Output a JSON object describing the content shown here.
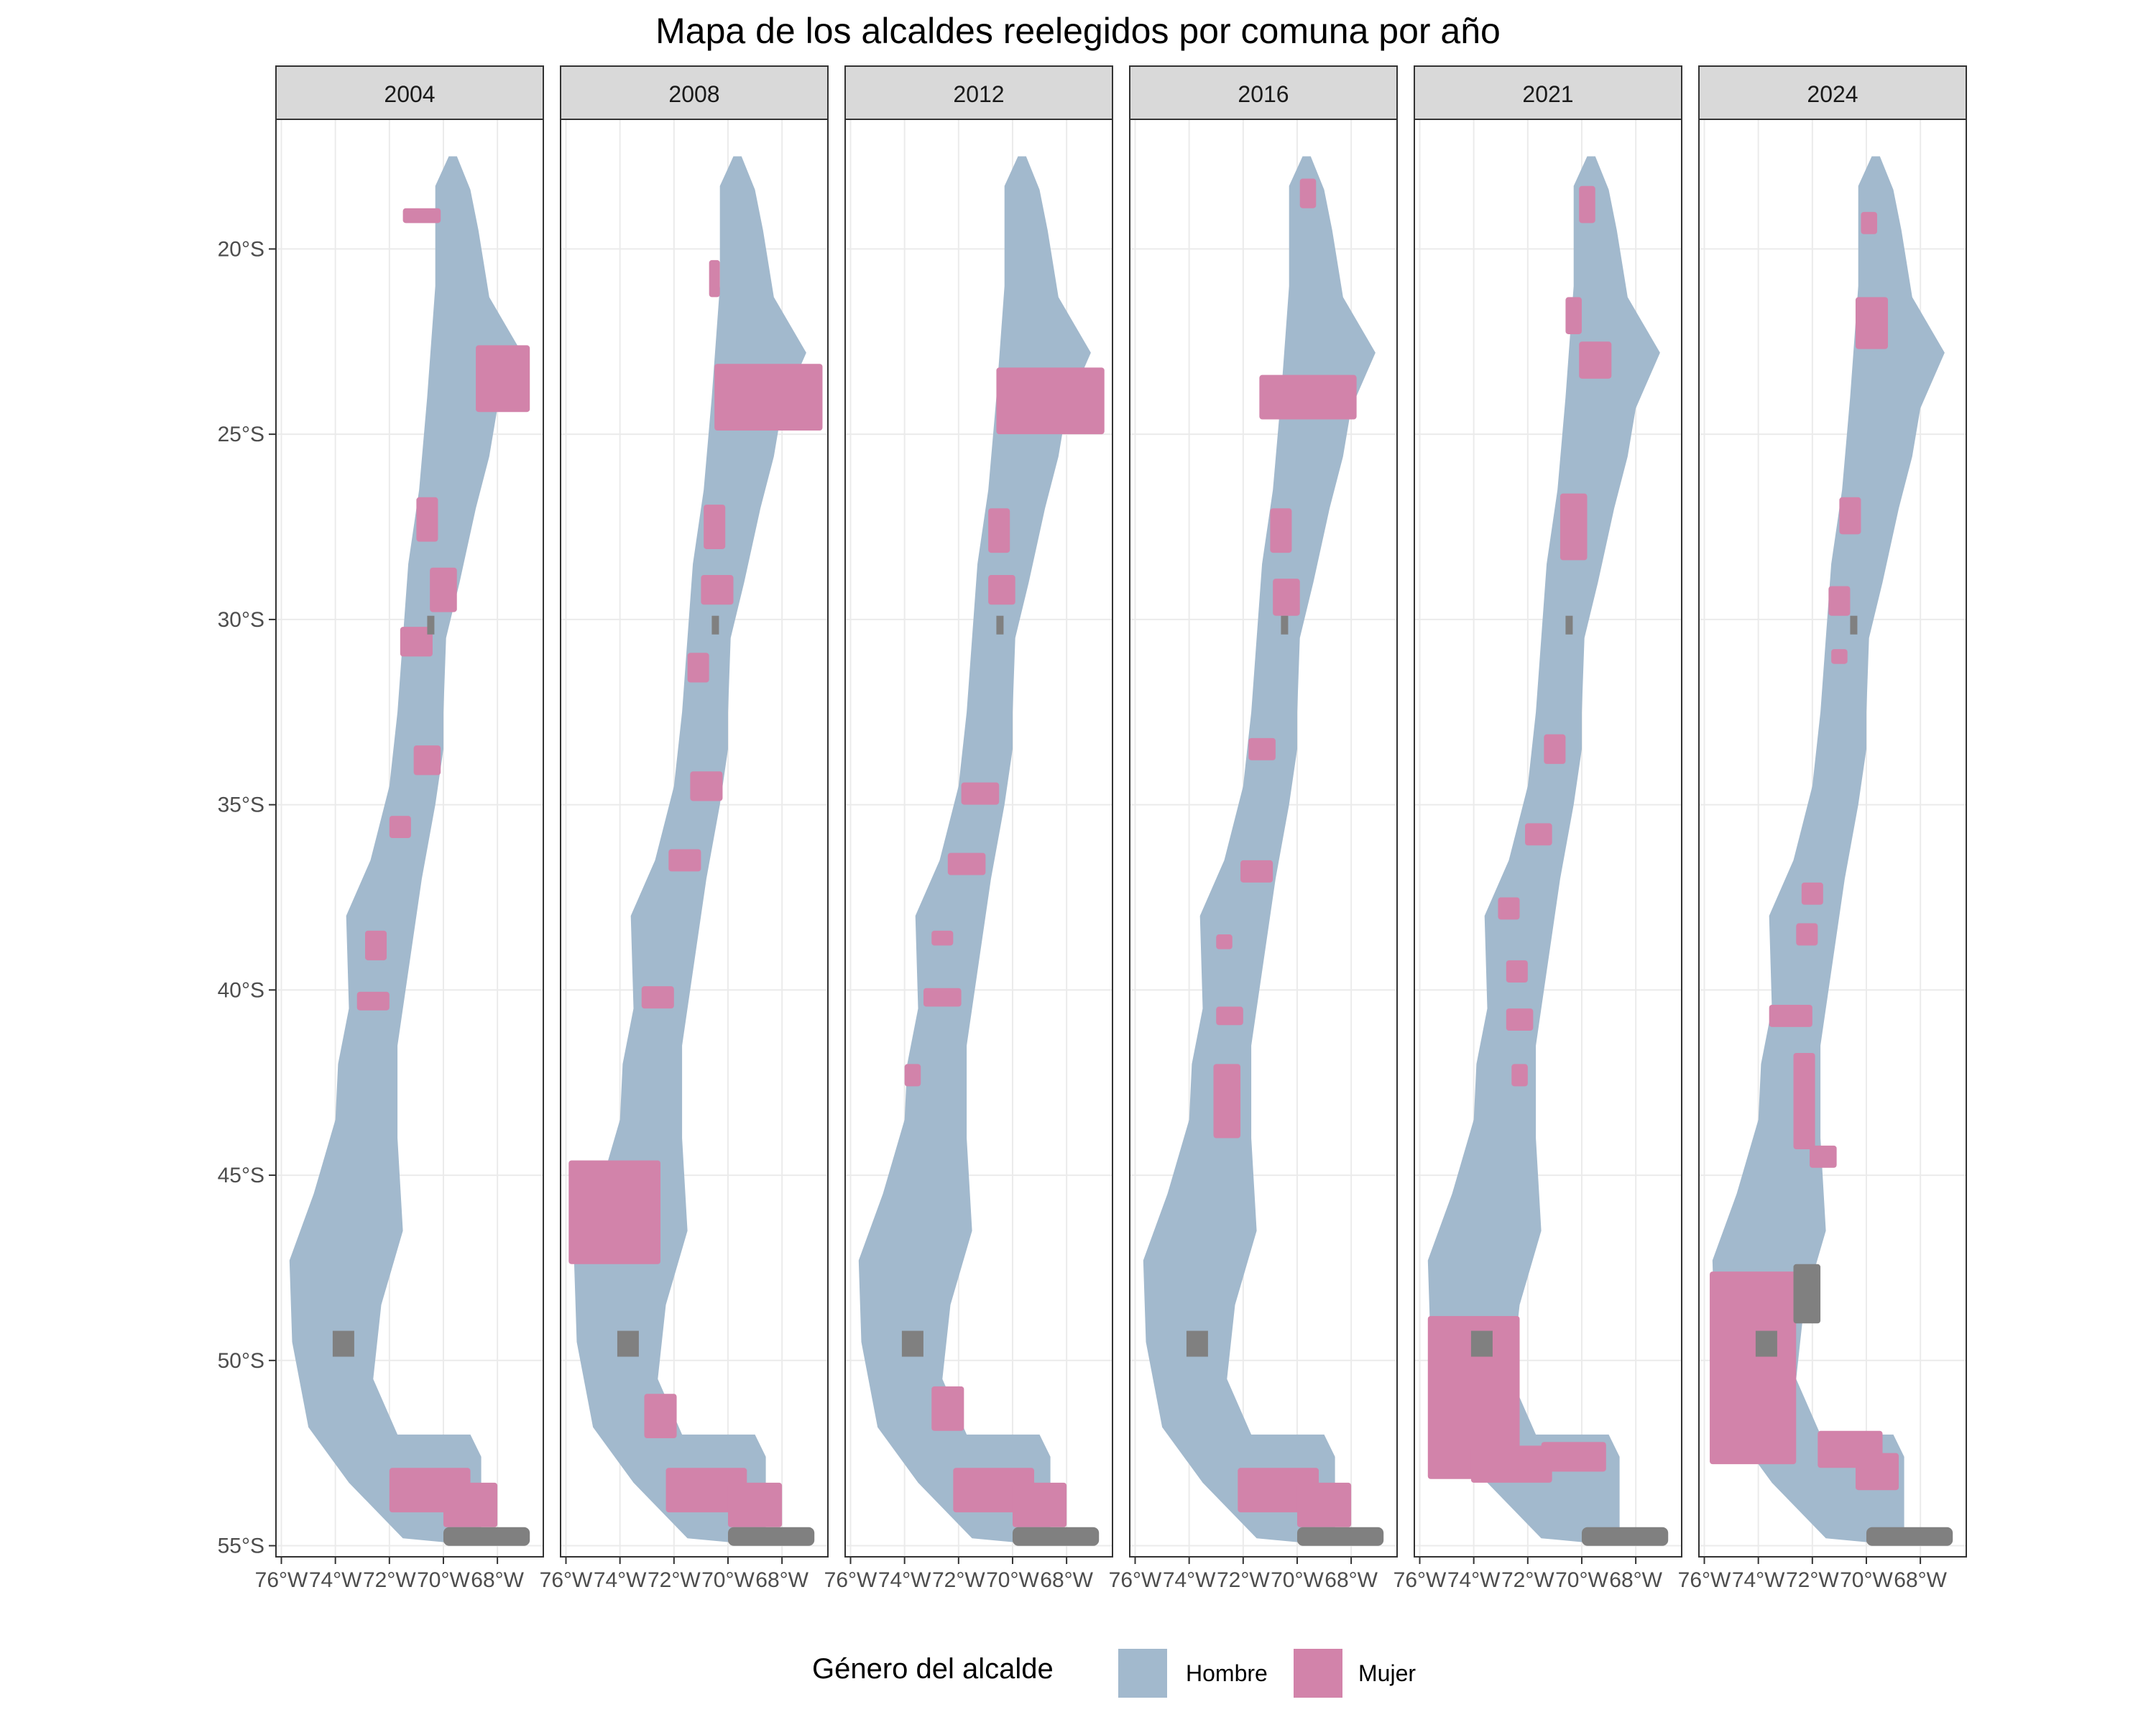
{
  "title": "Mapa de los alcaldes reelegidos por comuna por año",
  "panels": [
    "2004",
    "2008",
    "2012",
    "2016",
    "2021",
    "2024"
  ],
  "y_axis_labels": [
    {
      "lat": -20,
      "label": "20°S"
    },
    {
      "lat": -25,
      "label": "25°S"
    },
    {
      "lat": -30,
      "label": "30°S"
    },
    {
      "lat": -35,
      "label": "35°S"
    },
    {
      "lat": -40,
      "label": "40°S"
    },
    {
      "lat": -45,
      "label": "45°S"
    },
    {
      "lat": -50,
      "label": "50°S"
    },
    {
      "lat": -55,
      "label": "55°S"
    }
  ],
  "x_axis_labels": [
    {
      "lon": -76,
      "label": "76°W"
    },
    {
      "lon": -74,
      "label": "74°W"
    },
    {
      "lon": -72,
      "label": "72°W"
    },
    {
      "lon": -70,
      "label": "70°W"
    },
    {
      "lon": -68,
      "label": "68°W"
    }
  ],
  "legend": {
    "title": "Género del alcalde",
    "items": [
      {
        "label": "Hombre",
        "color": "#a2b9cd"
      },
      {
        "label": "Mujer",
        "color": "#d283aa"
      }
    ]
  },
  "colors": {
    "hombre": "#a2b9cd",
    "mujer": "#d283aa",
    "na": "#808080",
    "strip": "#d9d9d9",
    "grid": "#ebebeb"
  }
}
